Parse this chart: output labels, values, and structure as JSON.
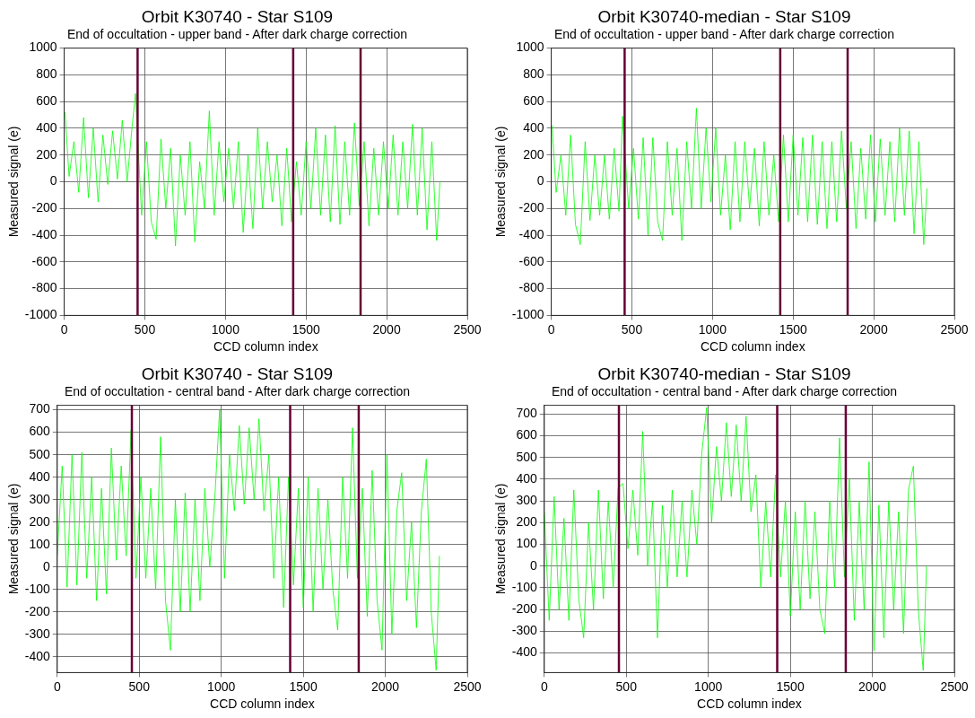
{
  "chart_data": [
    {
      "type": "line",
      "title": "Orbit K30740 - Star S109",
      "subtitle": "End of occultation - upper band - After dark charge correction",
      "xlabel": "CCD column index",
      "ylabel": "Measured signal (e)",
      "color": "#00ff00",
      "grid": true,
      "xlim": [
        0,
        2500
      ],
      "xticks": [
        0,
        500,
        1000,
        1500,
        2000,
        2500
      ],
      "ylim": [
        -1000,
        1000
      ],
      "yticks": [
        -1000,
        -800,
        -600,
        -400,
        -200,
        0,
        200,
        400,
        600,
        800,
        1000
      ],
      "x": [
        5,
        30,
        60,
        90,
        120,
        150,
        180,
        210,
        240,
        270,
        300,
        330,
        360,
        390,
        420,
        442,
        480,
        510,
        540,
        570,
        600,
        630,
        660,
        690,
        720,
        750,
        780,
        810,
        840,
        870,
        900,
        930,
        960,
        990,
        1020,
        1050,
        1080,
        1110,
        1140,
        1170,
        1200,
        1230,
        1260,
        1290,
        1320,
        1350,
        1380,
        1410,
        1440,
        1470,
        1500,
        1530,
        1560,
        1590,
        1620,
        1650,
        1680,
        1710,
        1740,
        1770,
        1800,
        1830,
        1860,
        1890,
        1920,
        1950,
        1980,
        2010,
        2040,
        2070,
        2100,
        2130,
        2160,
        2190,
        2220,
        2250,
        2280,
        2310,
        2330
      ],
      "values": [
        520,
        40,
        300,
        -80,
        480,
        -120,
        400,
        -150,
        350,
        -20,
        380,
        20,
        460,
        0,
        400,
        660,
        -250,
        300,
        -300,
        -430,
        320,
        -200,
        250,
        -480,
        200,
        -250,
        300,
        -450,
        150,
        -200,
        530,
        -250,
        300,
        -150,
        250,
        -200,
        300,
        -380,
        200,
        -350,
        400,
        -200,
        300,
        -150,
        200,
        -330,
        250,
        -300,
        150,
        -250,
        300,
        -200,
        400,
        -250,
        350,
        -300,
        420,
        -320,
        300,
        -250,
        440,
        -180,
        300,
        -330,
        250,
        -250,
        300,
        -200,
        350,
        -250,
        300,
        -200,
        430,
        -250,
        400,
        -360,
        300,
        -440,
        0
      ],
      "ref_lines": [
        {
          "axis": "x",
          "value": 455,
          "color": "#660033"
        },
        {
          "axis": "x",
          "value": 1420,
          "color": "#660033"
        },
        {
          "axis": "x",
          "value": 1838,
          "color": "#660033"
        }
      ]
    },
    {
      "type": "line",
      "title": "Orbit K30740-median - Star S109",
      "subtitle": "End of occultation - upper band - After dark charge correction",
      "xlabel": "CCD column index",
      "ylabel": "Measured signal (e)",
      "color": "#00ff00",
      "grid": true,
      "xlim": [
        0,
        2500
      ],
      "xticks": [
        0,
        500,
        1000,
        1500,
        2000,
        2500
      ],
      "ylim": [
        -1000,
        1000
      ],
      "yticks": [
        -1000,
        -800,
        -600,
        -400,
        -200,
        0,
        200,
        400,
        600,
        800,
        1000
      ],
      "x": [
        5,
        30,
        60,
        90,
        120,
        150,
        180,
        210,
        240,
        270,
        300,
        330,
        360,
        390,
        420,
        442,
        480,
        510,
        540,
        570,
        600,
        630,
        660,
        690,
        720,
        750,
        780,
        810,
        840,
        870,
        900,
        930,
        960,
        990,
        1020,
        1050,
        1080,
        1110,
        1140,
        1170,
        1200,
        1230,
        1260,
        1290,
        1320,
        1350,
        1380,
        1410,
        1440,
        1470,
        1500,
        1530,
        1560,
        1590,
        1620,
        1650,
        1680,
        1710,
        1740,
        1770,
        1800,
        1830,
        1860,
        1890,
        1920,
        1950,
        1980,
        2010,
        2040,
        2070,
        2100,
        2130,
        2160,
        2190,
        2220,
        2250,
        2280,
        2310,
        2330
      ],
      "values": [
        420,
        -80,
        200,
        -250,
        350,
        -320,
        -470,
        300,
        -290,
        200,
        -250,
        200,
        -280,
        250,
        -220,
        490,
        -200,
        250,
        -280,
        330,
        -400,
        330,
        -300,
        -440,
        300,
        -250,
        250,
        -440,
        300,
        -200,
        550,
        -200,
        400,
        -150,
        400,
        -250,
        200,
        -360,
        300,
        -300,
        300,
        -200,
        250,
        -330,
        300,
        -250,
        200,
        -300,
        350,
        -300,
        350,
        -250,
        330,
        -300,
        350,
        -320,
        300,
        -350,
        300,
        -300,
        380,
        -200,
        300,
        -350,
        250,
        -280,
        350,
        -300,
        320,
        -250,
        300,
        -300,
        400,
        -250,
        380,
        -390,
        300,
        -470,
        -50
      ],
      "ref_lines": [
        {
          "axis": "x",
          "value": 455,
          "color": "#660033"
        },
        {
          "axis": "x",
          "value": 1420,
          "color": "#660033"
        },
        {
          "axis": "x",
          "value": 1838,
          "color": "#660033"
        }
      ]
    },
    {
      "type": "line",
      "title": "Orbit K30740 - Star S109",
      "subtitle": "End of occultation - central band - After dark charge correction",
      "xlabel": "CCD column index",
      "ylabel": "Measured signal (e)",
      "color": "#00ff00",
      "grid": true,
      "xlim": [
        0,
        2500
      ],
      "xticks": [
        0,
        500,
        1000,
        1500,
        2000,
        2500
      ],
      "ylim": [
        -470,
        720
      ],
      "yticks": [
        -400,
        -300,
        -200,
        -100,
        0,
        100,
        200,
        300,
        400,
        500,
        600,
        700
      ],
      "x": [
        0,
        30,
        60,
        90,
        120,
        150,
        180,
        210,
        240,
        270,
        300,
        330,
        360,
        390,
        420,
        450,
        480,
        510,
        540,
        570,
        600,
        630,
        660,
        690,
        720,
        750,
        780,
        810,
        840,
        870,
        900,
        930,
        960,
        990,
        1020,
        1050,
        1080,
        1110,
        1140,
        1170,
        1200,
        1230,
        1260,
        1290,
        1320,
        1350,
        1380,
        1410,
        1440,
        1470,
        1500,
        1530,
        1560,
        1590,
        1620,
        1650,
        1680,
        1710,
        1740,
        1770,
        1800,
        1830,
        1860,
        1890,
        1920,
        1950,
        1980,
        2010,
        2040,
        2070,
        2100,
        2130,
        2160,
        2190,
        2220,
        2250,
        2280,
        2310,
        2330
      ],
      "values": [
        50,
        450,
        -90,
        500,
        -80,
        510,
        -50,
        400,
        -150,
        350,
        -120,
        530,
        30,
        450,
        50,
        610,
        -50,
        400,
        -50,
        350,
        -100,
        580,
        -150,
        -370,
        300,
        -200,
        330,
        -200,
        300,
        -150,
        350,
        0,
        300,
        700,
        -50,
        500,
        250,
        630,
        280,
        620,
        300,
        660,
        250,
        500,
        -50,
        400,
        -180,
        400,
        -80,
        350,
        -180,
        400,
        -200,
        350,
        -100,
        300,
        -100,
        -280,
        400,
        -50,
        620,
        -50,
        350,
        -220,
        430,
        -150,
        -370,
        500,
        -300,
        250,
        420,
        -150,
        200,
        -270,
        250,
        480,
        -200,
        -460,
        50
      ],
      "ref_lines": [
        {
          "axis": "x",
          "value": 455,
          "color": "#660033"
        },
        {
          "axis": "x",
          "value": 1420,
          "color": "#660033"
        },
        {
          "axis": "x",
          "value": 1838,
          "color": "#660033"
        }
      ]
    },
    {
      "type": "line",
      "title": "Orbit K30740-median - Star S109",
      "subtitle": "End of occultation - central band - After dark charge correction",
      "xlabel": "CCD column index",
      "ylabel": "Measured signal (e)",
      "color": "#00ff00",
      "grid": true,
      "xlim": [
        0,
        2500
      ],
      "xticks": [
        0,
        500,
        1000,
        1500,
        2000,
        2500
      ],
      "ylim": [
        -490,
        740
      ],
      "yticks": [
        -400,
        -300,
        -200,
        -100,
        0,
        100,
        200,
        300,
        400,
        500,
        600,
        700
      ],
      "x": [
        0,
        30,
        60,
        90,
        120,
        150,
        180,
        210,
        240,
        270,
        300,
        330,
        360,
        390,
        420,
        450,
        480,
        510,
        540,
        570,
        600,
        630,
        660,
        690,
        720,
        750,
        780,
        810,
        840,
        870,
        900,
        930,
        960,
        990,
        1020,
        1050,
        1080,
        1110,
        1140,
        1170,
        1200,
        1230,
        1260,
        1290,
        1320,
        1350,
        1380,
        1410,
        1440,
        1470,
        1500,
        1530,
        1560,
        1590,
        1620,
        1650,
        1680,
        1710,
        1740,
        1770,
        1800,
        1830,
        1860,
        1890,
        1920,
        1950,
        1980,
        2010,
        2040,
        2070,
        2100,
        2130,
        2160,
        2190,
        2220,
        2250,
        2280,
        2310,
        2330
      ],
      "values": [
        250,
        -250,
        320,
        -200,
        220,
        -250,
        350,
        -150,
        -330,
        200,
        -200,
        350,
        -150,
        300,
        -100,
        360,
        380,
        80,
        350,
        50,
        620,
        0,
        300,
        -330,
        280,
        -100,
        350,
        -50,
        300,
        -50,
        350,
        100,
        520,
        730,
        200,
        550,
        300,
        660,
        320,
        650,
        300,
        690,
        250,
        420,
        -100,
        300,
        -50,
        420,
        -50,
        300,
        -230,
        250,
        -200,
        300,
        -150,
        250,
        -200,
        -310,
        300,
        -100,
        590,
        -50,
        400,
        -250,
        300,
        -200,
        480,
        -390,
        280,
        -330,
        300,
        -200,
        250,
        -310,
        350,
        460,
        -200,
        -480,
        0
      ],
      "ref_lines": [
        {
          "axis": "x",
          "value": 455,
          "color": "#660033"
        },
        {
          "axis": "x",
          "value": 1420,
          "color": "#660033"
        },
        {
          "axis": "x",
          "value": 1838,
          "color": "#660033"
        }
      ]
    }
  ]
}
